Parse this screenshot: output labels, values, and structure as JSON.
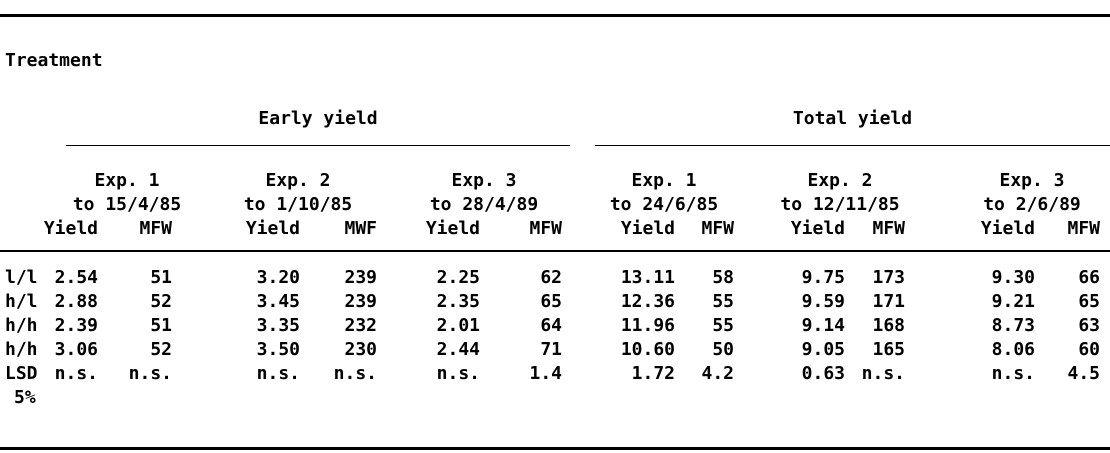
{
  "table": {
    "stub_header": "Treatment",
    "group_headers": [
      "Early yield",
      "Total yield"
    ],
    "experiments": [
      {
        "exp": "Exp. 1",
        "period": "to 15/4/85",
        "yield_label": "Yield",
        "weight_label": "MFW"
      },
      {
        "exp": "Exp. 2",
        "period": "to 1/10/85",
        "yield_label": "Yield",
        "weight_label": "MWF"
      },
      {
        "exp": "Exp. 3",
        "period": "to 28/4/89",
        "yield_label": "Yield",
        "weight_label": "MFW"
      },
      {
        "exp": "Exp. 1",
        "period": "to 24/6/85",
        "yield_label": "Yield",
        "weight_label": "MFW"
      },
      {
        "exp": "Exp. 2",
        "period": "to 12/11/85",
        "yield_label": "Yield",
        "weight_label": "MFW"
      },
      {
        "exp": "Exp. 3",
        "period": "to 2/6/89",
        "yield_label": "Yield",
        "weight_label": "MFW"
      }
    ],
    "rows": [
      {
        "treatment": "l/l",
        "values": [
          "2.54",
          "51",
          "3.20",
          "239",
          "2.25",
          "62",
          "13.11",
          "58",
          "9.75",
          "173",
          "9.30",
          "66"
        ]
      },
      {
        "treatment": "h/l",
        "values": [
          "2.88",
          "52",
          "3.45",
          "239",
          "2.35",
          "65",
          "12.36",
          "55",
          "9.59",
          "171",
          "9.21",
          "65"
        ]
      },
      {
        "treatment": "h/h",
        "values": [
          "2.39",
          "51",
          "3.35",
          "232",
          "2.01",
          "64",
          "11.96",
          "55",
          "9.14",
          "168",
          "8.73",
          "63"
        ]
      },
      {
        "treatment": "h/h",
        "values": [
          "3.06",
          "52",
          "3.50",
          "230",
          "2.44",
          "71",
          "10.60",
          "50",
          "9.05",
          "165",
          "8.06",
          "60"
        ]
      },
      {
        "treatment": "LSD",
        "treatment_line2": "5%",
        "values": [
          "n.s.",
          "n.s.",
          "n.s.",
          "n.s.",
          "n.s.",
          "1.4",
          "1.72",
          "4.2",
          "0.63",
          "n.s.",
          "n.s.",
          "4.5"
        ]
      }
    ]
  }
}
